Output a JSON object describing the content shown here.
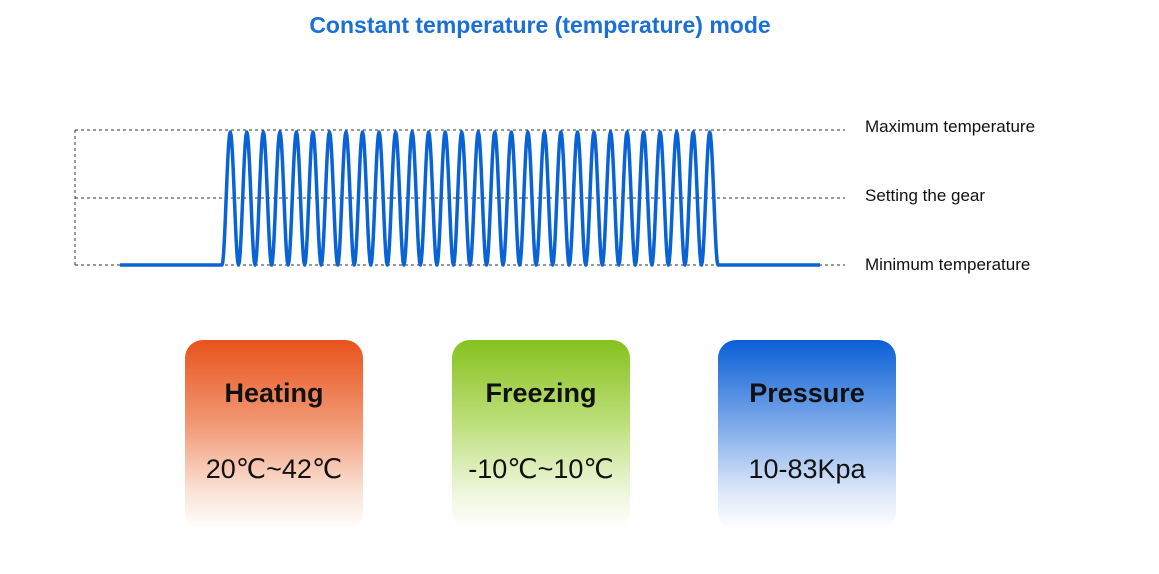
{
  "title": "Constant temperature (temperature) mode",
  "levels": {
    "max": "Maximum temperature",
    "setting": "Setting the gear",
    "min": "Minimum temperature"
  },
  "wave": {
    "cycles": 30,
    "color": "#0a63d6"
  },
  "cards": [
    {
      "name": "Heating",
      "range": "20℃~42℃",
      "color": "#e8521c"
    },
    {
      "name": "Freezing",
      "range": "-10℃~10℃",
      "color": "#86c11e"
    },
    {
      "name": "Pressure",
      "range": "10-83Kpa",
      "color": "#0a5fd6"
    }
  ]
}
